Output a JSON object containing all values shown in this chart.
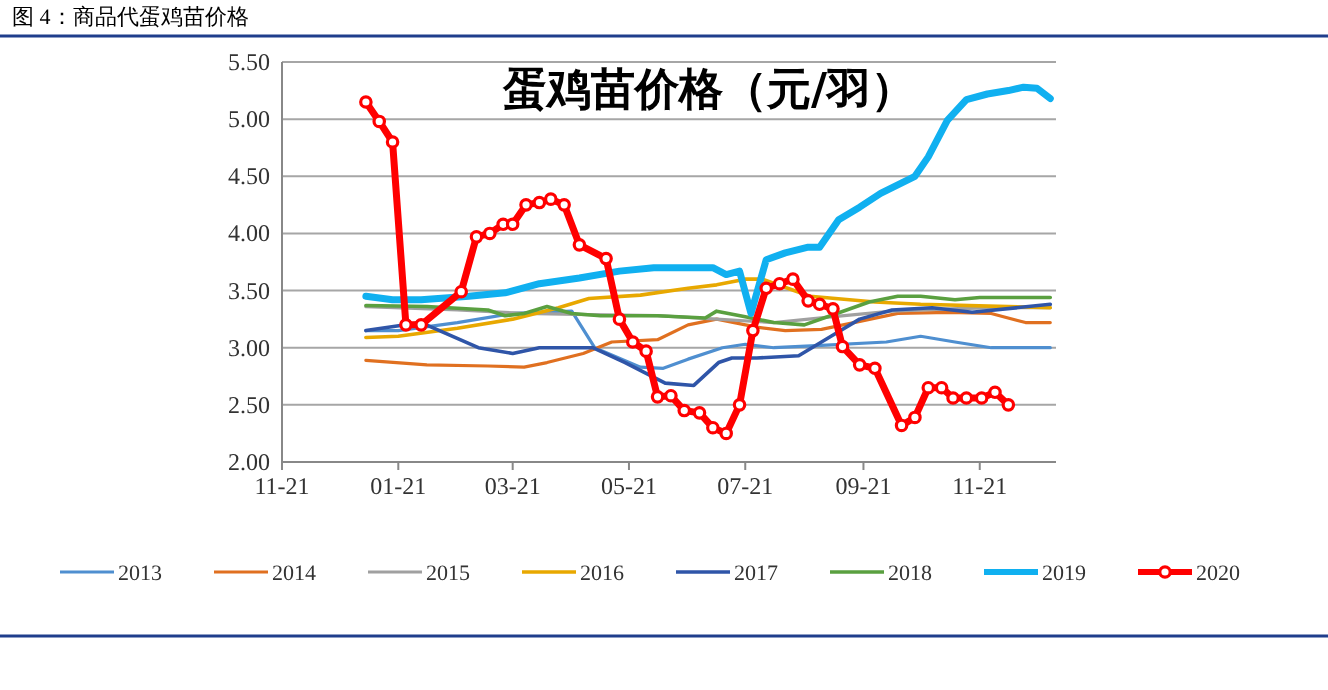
{
  "chart_data": {
    "type": "line",
    "title": "图 4：商品代蛋鸡苗价格",
    "subtitle": "蛋鸡苗价格（元/羽）",
    "xlim": [
      "2019-11-21",
      "2020-12-31"
    ],
    "xticks": [
      {
        "value": "2019-11-21",
        "label": "11-21"
      },
      {
        "value": "2020-01-21",
        "label": "01-21"
      },
      {
        "value": "2020-03-21",
        "label": "03-21"
      },
      {
        "value": "2020-05-21",
        "label": "05-21"
      },
      {
        "value": "2020-07-21",
        "label": "07-21"
      },
      {
        "value": "2020-09-21",
        "label": "09-21"
      },
      {
        "value": "2020-11-21",
        "label": "11-21"
      }
    ],
    "ylim": [
      2,
      5.5
    ],
    "yticks": [
      {
        "value": 2,
        "label": "2.00"
      },
      {
        "value": 2.5,
        "label": "2.50"
      },
      {
        "value": 3,
        "label": "3.00"
      },
      {
        "value": 3.5,
        "label": "3.50"
      },
      {
        "value": 4,
        "label": "4.00"
      },
      {
        "value": 4.5,
        "label": "4.50"
      },
      {
        "value": 5,
        "label": "5.00"
      },
      {
        "value": 5.5,
        "label": "5.50"
      }
    ],
    "grid": "y",
    "legend": "bottom",
    "series": [
      {
        "name": "2013",
        "color": "#4f8fd0",
        "x": [
          "2020-01-04",
          "2020-01-21",
          "2020-02-21",
          "2020-03-21",
          "2020-04-21",
          "2020-05-03",
          "2020-05-27",
          "2020-06-08",
          "2020-06-21",
          "2020-07-09",
          "2020-07-21",
          "2020-08-05",
          "2020-08-30",
          "2020-10-03",
          "2020-10-21",
          "2020-11-08",
          "2020-11-27",
          "2020-12-28"
        ],
        "values": [
          3.15,
          3.15,
          3.22,
          3.3,
          3.32,
          3,
          2.83,
          2.82,
          2.9,
          3,
          3.03,
          3,
          3.02,
          3.05,
          3.1,
          3.05,
          3,
          3
        ]
      },
      {
        "name": "2014",
        "color": "#e07020",
        "x": [
          "2020-01-04",
          "2020-02-05",
          "2020-03-08",
          "2020-03-27",
          "2020-04-08",
          "2020-04-27",
          "2020-05-12",
          "2020-06-05",
          "2020-06-21",
          "2020-07-06",
          "2020-07-27",
          "2020-08-11",
          "2020-08-30",
          "2020-09-16",
          "2020-10-09",
          "2020-11-05",
          "2020-11-27",
          "2020-12-15",
          "2020-12-28"
        ],
        "values": [
          2.89,
          2.85,
          2.84,
          2.83,
          2.87,
          2.95,
          3.05,
          3.07,
          3.2,
          3.25,
          3.18,
          3.15,
          3.16,
          3.22,
          3.3,
          3.31,
          3.3,
          3.22,
          3.22
        ]
      },
      {
        "name": "2015",
        "color": "#a0a0a0",
        "x": [
          "2020-01-04",
          "2020-02-21",
          "2020-03-27",
          "2020-04-30",
          "2020-06-05",
          "2020-07-06",
          "2020-08-05",
          "2020-09-04",
          "2020-10-06",
          "2020-11-05",
          "2020-11-30",
          "2020-12-28"
        ],
        "values": [
          3.36,
          3.33,
          3.3,
          3.29,
          3.28,
          3.25,
          3.22,
          3.27,
          3.32,
          3.34,
          3.35,
          3.35
        ]
      },
      {
        "name": "2016",
        "color": "#e8a800",
        "x": [
          "2020-01-04",
          "2020-01-21",
          "2020-02-21",
          "2020-03-21",
          "2020-04-14",
          "2020-04-30",
          "2020-05-27",
          "2020-06-21",
          "2020-07-06",
          "2020-07-21",
          "2020-07-30",
          "2020-08-24",
          "2020-09-27",
          "2020-10-21",
          "2020-12-28"
        ],
        "values": [
          3.09,
          3.1,
          3.17,
          3.25,
          3.35,
          3.43,
          3.46,
          3.52,
          3.55,
          3.6,
          3.6,
          3.45,
          3.4,
          3.38,
          3.35
        ]
      },
      {
        "name": "2017",
        "color": "#2f55a8",
        "x": [
          "2020-01-04",
          "2020-02-02",
          "2020-03-03",
          "2020-03-21",
          "2020-04-04",
          "2020-05-02",
          "2020-05-19",
          "2020-06-09",
          "2020-06-24",
          "2020-07-07",
          "2020-07-14",
          "2020-07-27",
          "2020-08-18",
          "2020-09-04",
          "2020-09-19",
          "2020-10-06",
          "2020-10-27",
          "2020-11-17",
          "2020-12-28"
        ],
        "values": [
          3.15,
          3.22,
          3,
          2.95,
          3,
          3,
          2.87,
          2.69,
          2.67,
          2.87,
          2.91,
          2.91,
          2.93,
          3.1,
          3.25,
          3.33,
          3.35,
          3.31,
          3.38
        ]
      },
      {
        "name": "2018",
        "color": "#5aa040",
        "x": [
          "2020-01-04",
          "2020-02-05",
          "2020-03-08",
          "2020-03-17",
          "2020-03-27",
          "2020-04-08",
          "2020-04-21",
          "2020-05-06",
          "2020-06-05",
          "2020-06-30",
          "2020-07-06",
          "2020-07-21",
          "2020-08-05",
          "2020-08-21",
          "2020-09-07",
          "2020-09-24",
          "2020-10-09",
          "2020-10-21",
          "2020-11-08",
          "2020-11-21",
          "2020-12-28"
        ],
        "values": [
          3.37,
          3.36,
          3.33,
          3.28,
          3.3,
          3.36,
          3.3,
          3.28,
          3.28,
          3.26,
          3.32,
          3.27,
          3.22,
          3.2,
          3.3,
          3.4,
          3.45,
          3.45,
          3.42,
          3.44,
          3.44
        ]
      },
      {
        "name": "2019",
        "color": "#10b0f0",
        "x": [
          "2020-01-04",
          "2020-01-18",
          "2020-02-02",
          "2020-02-27",
          "2020-03-17",
          "2020-04-04",
          "2020-04-25",
          "2020-05-16",
          "2020-06-03",
          "2020-07-04",
          "2020-07-11",
          "2020-07-18",
          "2020-07-24",
          "2020-08-01",
          "2020-08-11",
          "2020-08-23",
          "2020-08-29",
          "2020-09-08",
          "2020-09-19",
          "2020-09-30",
          "2020-10-18",
          "2020-10-25",
          "2020-11-04",
          "2020-11-14",
          "2020-11-25",
          "2020-12-06",
          "2020-12-14",
          "2020-12-21",
          "2020-12-28"
        ],
        "values": [
          3.45,
          3.42,
          3.42,
          3.45,
          3.48,
          3.56,
          3.61,
          3.67,
          3.7,
          3.7,
          3.64,
          3.67,
          3.3,
          3.77,
          3.83,
          3.88,
          3.88,
          4.12,
          4.23,
          4.35,
          4.5,
          4.67,
          4.99,
          5.17,
          5.22,
          5.25,
          5.28,
          5.27,
          5.18
        ]
      },
      {
        "name": "2020",
        "color": "#ff0000",
        "marker": "circle",
        "x": [
          "2020-01-04",
          "2020-01-11",
          "2020-01-18",
          "2020-01-25",
          "2020-02-02",
          "2020-02-23",
          "2020-03-02",
          "2020-03-09",
          "2020-03-16",
          "2020-03-21",
          "2020-03-28",
          "2020-04-04",
          "2020-04-10",
          "2020-04-17",
          "2020-04-25",
          "2020-05-09",
          "2020-05-16",
          "2020-05-23",
          "2020-05-30",
          "2020-06-05",
          "2020-06-12",
          "2020-06-19",
          "2020-06-27",
          "2020-07-04",
          "2020-07-11",
          "2020-07-18",
          "2020-07-25",
          "2020-08-01",
          "2020-08-08",
          "2020-08-15",
          "2020-08-23",
          "2020-08-29",
          "2020-09-05",
          "2020-09-10",
          "2020-09-19",
          "2020-09-27",
          "2020-10-11",
          "2020-10-18",
          "2020-10-25",
          "2020-11-01",
          "2020-11-07",
          "2020-11-14",
          "2020-11-22",
          "2020-11-29",
          "2020-12-06"
        ],
        "values": [
          5.15,
          4.98,
          4.8,
          3.2,
          3.2,
          3.49,
          3.97,
          4,
          4.08,
          4.08,
          4.25,
          4.27,
          4.3,
          4.25,
          3.9,
          3.78,
          3.25,
          3.05,
          2.97,
          2.57,
          2.58,
          2.45,
          2.43,
          2.3,
          2.25,
          2.5,
          3.15,
          3.52,
          3.56,
          3.6,
          3.41,
          3.38,
          3.34,
          3.01,
          2.85,
          2.82,
          2.32,
          2.39,
          2.65,
          2.65,
          2.56,
          2.56,
          2.56,
          2.61,
          2.5
        ]
      }
    ]
  }
}
